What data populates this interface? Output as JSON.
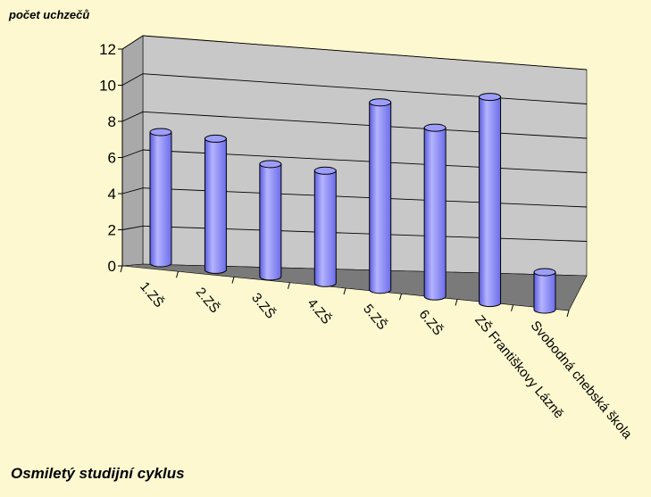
{
  "chart_data": {
    "type": "bar",
    "title": "Osmiletý studijní cyklus",
    "ylabel": "počet uchzečů",
    "xlabel": "",
    "ylim": [
      0,
      12
    ],
    "yticks": [
      0,
      2,
      4,
      6,
      8,
      10,
      12
    ],
    "categories": [
      "1.ZŠ",
      "2.ZŠ",
      "3.ZŠ",
      "4.ZŠ",
      "5.ZŠ",
      "6.ZŠ",
      "ZŠ Františkovy Lázně",
      "Svobodná chebská škola"
    ],
    "values": [
      7,
      7,
      6,
      6,
      10,
      9,
      11,
      2
    ],
    "grid": true,
    "style": "3d-cylinder",
    "bar_color": "#8e8ef5",
    "background_color": "#fdf8cf",
    "wall_color": "#c8c8c8",
    "floor_color": "#7a7a7a"
  }
}
